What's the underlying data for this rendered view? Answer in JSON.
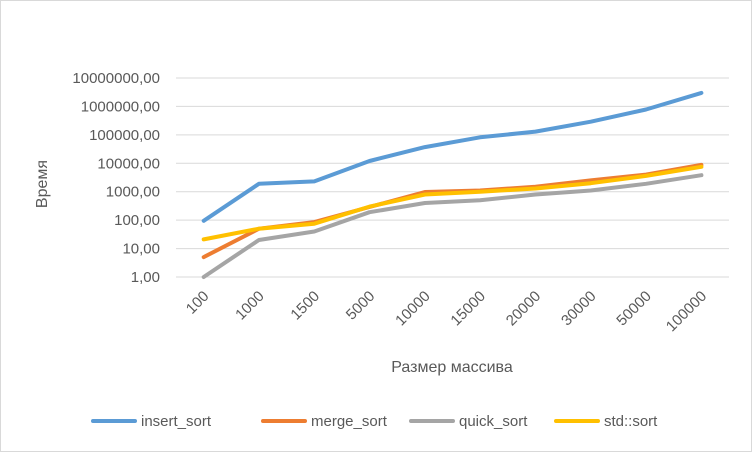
{
  "chart_data": {
    "type": "line",
    "title": "",
    "xlabel": "Размер массива",
    "ylabel": "Время",
    "y_scale": "log10",
    "ylim": [
      1,
      10000000
    ],
    "y_ticks": [
      1,
      10,
      100,
      1000,
      10000,
      100000,
      1000000,
      10000000
    ],
    "y_tick_labels": [
      "1,00",
      "10,00",
      "100,00",
      "1000,00",
      "10000,00",
      "100000,00",
      "1000000,00",
      "10000000,00"
    ],
    "categories": [
      "100",
      "1000",
      "1500",
      "5000",
      "10000",
      "15000",
      "20000",
      "30000",
      "50000",
      "100000"
    ],
    "grid": true,
    "legend_position": "bottom",
    "series": [
      {
        "name": "insert_sort",
        "color": "#5b9bd5",
        "values": [
          95,
          1900,
          2300,
          12000,
          37000,
          82000,
          130000,
          290000,
          780000,
          3000000
        ]
      },
      {
        "name": "merge_sort",
        "color": "#ed7d31",
        "values": [
          5,
          50,
          85,
          290,
          980,
          1100,
          1500,
          2500,
          4000,
          8800
        ]
      },
      {
        "name": "quick_sort",
        "color": "#a5a5a5",
        "values": [
          1,
          20,
          40,
          190,
          400,
          500,
          800,
          1100,
          1900,
          3800
        ]
      },
      {
        "name": "std::sort",
        "color": "#ffc000",
        "values": [
          21,
          50,
          75,
          300,
          800,
          1000,
          1300,
          2000,
          3600,
          7500
        ]
      }
    ]
  }
}
